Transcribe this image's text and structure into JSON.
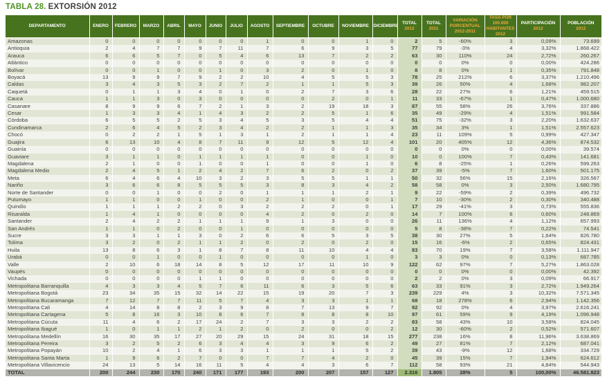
{
  "title": {
    "prefix": "TABLA 28.",
    "rest": "EXTORSIÓN 2012"
  },
  "colors": {
    "title_green": "#4f9227",
    "title_dark": "#3e3e3c",
    "header_bg": "#47731e",
    "header_text": "#ffffff",
    "header_accent": "#edaa3c",
    "row_odd": "#e1e6d4",
    "row_even": "#f3f3ee",
    "total2012_column": "#d2dcbf",
    "total_row_bg": "#b3b3ad",
    "total_row_total2012": "#9cba74",
    "body_text": "#3f3f3c"
  },
  "table": {
    "columns": [
      {
        "key": "departamento",
        "label": "DEPARTAMENTO",
        "sub": "",
        "accent": false
      },
      {
        "key": "enero",
        "label": "ENERO",
        "sub": "",
        "accent": false
      },
      {
        "key": "febrero",
        "label": "FEBRERO",
        "sub": "",
        "accent": false
      },
      {
        "key": "marzo",
        "label": "MARZO",
        "sub": "",
        "accent": false
      },
      {
        "key": "abril",
        "label": "ABRIL",
        "sub": "",
        "accent": false
      },
      {
        "key": "mayo",
        "label": "MAYO",
        "sub": "",
        "accent": false
      },
      {
        "key": "junio",
        "label": "JUNIO",
        "sub": "",
        "accent": false
      },
      {
        "key": "julio",
        "label": "JULIO",
        "sub": "",
        "accent": false
      },
      {
        "key": "agosto",
        "label": "AGOSTO",
        "sub": "",
        "accent": false
      },
      {
        "key": "septiembre",
        "label": "SEPTIEMBRE",
        "sub": "",
        "accent": false
      },
      {
        "key": "octubre",
        "label": "OCTUBRE",
        "sub": "",
        "accent": false
      },
      {
        "key": "noviembre",
        "label": "NOVIEMBRE",
        "sub": "",
        "accent": false
      },
      {
        "key": "diciembre",
        "label": "DICIEMBRE",
        "sub": "",
        "accent": false
      },
      {
        "key": "total_2012",
        "label": "TOTAL",
        "sub": "2012",
        "accent": false
      },
      {
        "key": "total_2011",
        "label": "TOTAL",
        "sub": "2011",
        "accent": false
      },
      {
        "key": "variacion",
        "label": "VARIACIÓN PORCENTUAL",
        "sub": "2012-2011",
        "accent": true
      },
      {
        "key": "tasa",
        "label": "TASA POR 100.000",
        "sub": "HABITANTES 2012",
        "accent": true
      },
      {
        "key": "participacion",
        "label": "PARTICIPACIÓN",
        "sub": "2012",
        "accent": false
      },
      {
        "key": "poblacion",
        "label": "POBLACIÓN",
        "sub": "2012",
        "accent": false
      }
    ],
    "rows": [
      {
        "cells": [
          "Amazonas",
          "0",
          "0",
          "0",
          "0",
          "0",
          "0",
          "0",
          "1",
          "0",
          "0",
          "1",
          "0",
          "2",
          "5",
          "-60%",
          "3",
          "0,09%",
          "73.699"
        ]
      },
      {
        "cells": [
          "Antioquia",
          "2",
          "4",
          "7",
          "7",
          "9",
          "7",
          "11",
          "7",
          "6",
          "9",
          "3",
          "5",
          "77",
          "79",
          "-3%",
          "4",
          "3,32%",
          "1.868.422"
        ]
      },
      {
        "cells": [
          "Arauca",
          "6",
          "6",
          "5",
          "7",
          "0",
          "5",
          "4",
          "6",
          "13",
          "7",
          "2",
          "2",
          "63",
          "30",
          "110%",
          "24",
          "2,72%",
          "260.267"
        ]
      },
      {
        "cells": [
          "Atlántico",
          "0",
          "0",
          "0",
          "0",
          "0",
          "0",
          "0",
          "0",
          "0",
          "0",
          "0",
          "0",
          "0",
          "0",
          "0%",
          "0",
          "0,00%",
          "424.286"
        ]
      },
      {
        "cells": [
          "Bolívar",
          "0",
          "0",
          "1",
          "0",
          "0",
          "1",
          "0",
          "3",
          "2",
          "0",
          "1",
          "0",
          "8",
          "8",
          "0%",
          "1",
          "0,35%",
          "791.848"
        ]
      },
      {
        "cells": [
          "Boyacá",
          "13",
          "9",
          "9",
          "7",
          "9",
          "2",
          "2",
          "10",
          "4",
          "5",
          "5",
          "3",
          "78",
          "25",
          "212%",
          "6",
          "3,37%",
          "1.210.496"
        ]
      },
      {
        "cells": [
          "Caldas",
          "3",
          "4",
          "3",
          "5",
          "3",
          "2",
          "7",
          "2",
          "1",
          "1",
          "5",
          "3",
          "39",
          "26",
          "50%",
          "4",
          "1,68%",
          "982.207"
        ]
      },
      {
        "cells": [
          "Caquetá",
          "0",
          "1",
          "1",
          "3",
          "4",
          "0",
          "1",
          "0",
          "2",
          "7",
          "3",
          "6",
          "28",
          "22",
          "27%",
          "6",
          "1,21%",
          "459.515"
        ]
      },
      {
        "cells": [
          "Cauca",
          "1",
          "1",
          "3",
          "0",
          "3",
          "0",
          "0",
          "0",
          "0",
          "2",
          "0",
          "1",
          "11",
          "33",
          "-67%",
          "1",
          "0,47%",
          "1.000.680"
        ]
      },
      {
        "cells": [
          "Casanare",
          "8",
          "9",
          "9",
          "6",
          "7",
          "2",
          "1",
          "3",
          "2",
          "19",
          "18",
          "3",
          "87",
          "55",
          "58%",
          "26",
          "3,76%",
          "337.886"
        ]
      },
      {
        "cells": [
          "Cesar",
          "1",
          "3",
          "3",
          "4",
          "1",
          "4",
          "3",
          "2",
          "2",
          "5",
          "1",
          "6",
          "35",
          "49",
          "-29%",
          "4",
          "1,51%",
          "991.584"
        ]
      },
      {
        "cells": [
          "Córdoba",
          "6",
          "5",
          "5",
          "2",
          "5",
          "3",
          "4",
          "5",
          "3",
          "5",
          "4",
          "4",
          "51",
          "75",
          "-32%",
          "3",
          "2,20%",
          "1.632.637"
        ]
      },
      {
        "cells": [
          "Cundinamarca",
          "2",
          "6",
          "4",
          "5",
          "2",
          "3",
          "4",
          "2",
          "2",
          "1",
          "1",
          "3",
          "35",
          "34",
          "3%",
          "1",
          "1,51%",
          "2.557.623"
        ]
      },
      {
        "cells": [
          "Chocó",
          "0",
          "2",
          "2",
          "1",
          "5",
          "1",
          "3",
          "1",
          "2",
          "1",
          "1",
          "4",
          "23",
          "11",
          "109%",
          "5",
          "0,99%",
          "427.347"
        ]
      },
      {
        "cells": [
          "Guajira",
          "6",
          "13",
          "10",
          "4",
          "8",
          "7",
          "11",
          "9",
          "12",
          "5",
          "12",
          "4",
          "101",
          "20",
          "405%",
          "12",
          "4,36%",
          "874.532"
        ]
      },
      {
        "cells": [
          "Guainía",
          "0",
          "0",
          "0",
          "0",
          "0",
          "0",
          "0",
          "0",
          "0",
          "0",
          "0",
          "0",
          "0",
          "0",
          "0%",
          "0",
          "0,00%",
          "39.574"
        ]
      },
      {
        "cells": [
          "Guaviare",
          "3",
          "1",
          "1",
          "0",
          "1",
          "1",
          "1",
          "1",
          "0",
          "0",
          "1",
          "0",
          "10",
          "0",
          "100%",
          "7",
          "0,43%",
          "141.681"
        ]
      },
      {
        "cells": [
          "Magdalena",
          "2",
          "1",
          "0",
          "0",
          "1",
          "0",
          "0",
          "1",
          "0",
          "0",
          "1",
          "0",
          "6",
          "8",
          "-25%",
          "1",
          "0,26%",
          "599.263"
        ]
      },
      {
        "cells": [
          "Magdalena Medio",
          "2",
          "4",
          "5",
          "1",
          "2",
          "4",
          "2",
          "7",
          "6",
          "2",
          "0",
          "2",
          "37",
          "39",
          "-5%",
          "7",
          "1,60%",
          "501.175"
        ]
      },
      {
        "cells": [
          "Meta",
          "6",
          "4",
          "6",
          "4",
          "10",
          "3",
          "2",
          "3",
          "5",
          "5",
          "1",
          "1",
          "50",
          "32",
          "56%",
          "15",
          "2,16%",
          "326.567"
        ]
      },
      {
        "cells": [
          "Nariño",
          "3",
          "6",
          "6",
          "8",
          "5",
          "5",
          "5",
          "3",
          "8",
          "3",
          "4",
          "2",
          "58",
          "58",
          "0%",
          "3",
          "2,50%",
          "1.680.795"
        ]
      },
      {
        "cells": [
          "Norte de Santander",
          "0",
          "0",
          "1",
          "0",
          "0",
          "2",
          "0",
          "1",
          "1",
          "1",
          "2",
          "1",
          "9",
          "22",
          "-59%",
          "2",
          "0,39%",
          "496.732"
        ]
      },
      {
        "cells": [
          "Putumayo",
          "1",
          "1",
          "0",
          "0",
          "1",
          "0",
          "0",
          "2",
          "1",
          "0",
          "0",
          "1",
          "7",
          "10",
          "-30%",
          "2",
          "0,30%",
          "340.488"
        ]
      },
      {
        "cells": [
          "Quindío",
          "1",
          "1",
          "1",
          "2",
          "2",
          "0",
          "3",
          "2",
          "2",
          "2",
          "0",
          "1",
          "17",
          "29",
          "-41%",
          "3",
          "0,73%",
          "555.836"
        ]
      },
      {
        "cells": [
          "Risaralda",
          "1",
          "4",
          "1",
          "0",
          "0",
          "0",
          "0",
          "4",
          "2",
          "0",
          "2",
          "0",
          "14",
          "7",
          "100%",
          "6",
          "0,60%",
          "248.869"
        ]
      },
      {
        "cells": [
          "Santander",
          "2",
          "4",
          "2",
          "2",
          "1",
          "1",
          "1",
          "9",
          "1",
          "3",
          "0",
          "0",
          "26",
          "11",
          "136%",
          "4",
          "1,12%",
          "657.993"
        ]
      },
      {
        "cells": [
          "San Andrés",
          "1",
          "1",
          "0",
          "2",
          "0",
          "0",
          "1",
          "0",
          "0",
          "0",
          "0",
          "0",
          "5",
          "8",
          "-38%",
          "7",
          "0,22%",
          "74.541"
        ]
      },
      {
        "cells": [
          "Sucre",
          "3",
          "3",
          "1",
          "1",
          "3",
          "0",
          "2",
          "6",
          "6",
          "5",
          "3",
          "5",
          "38",
          "30",
          "27%",
          "5",
          "1,64%",
          "826.780"
        ]
      },
      {
        "cells": [
          "Tolima",
          "3",
          "2",
          "0",
          "2",
          "1",
          "1",
          "2",
          "0",
          "2",
          "0",
          "2",
          "0",
          "15",
          "16",
          "-6%",
          "2",
          "0,65%",
          "824.431"
        ]
      },
      {
        "cells": [
          "Huila",
          "13",
          "8",
          "6",
          "3",
          "1",
          "8",
          "7",
          "8",
          "11",
          "10",
          "4",
          "4",
          "83",
          "70",
          "19%",
          "7",
          "3,58%",
          "1.111.947"
        ]
      },
      {
        "cells": [
          "Urabá",
          "0",
          "0",
          "1",
          "0",
          "0",
          "1",
          "0",
          "0",
          "0",
          "0",
          "1",
          "0",
          "3",
          "3",
          "0%",
          "0",
          "0,13%",
          "687.785"
        ]
      },
      {
        "cells": [
          "Valle",
          "2",
          "10",
          "6",
          "18",
          "14",
          "8",
          "5",
          "12",
          "17",
          "11",
          "10",
          "9",
          "122",
          "62",
          "97%",
          "7",
          "5,27%",
          "1.863.028"
        ]
      },
      {
        "cells": [
          "Vaupés",
          "0",
          "0",
          "0",
          "0",
          "0",
          "0",
          "0",
          "0",
          "0",
          "0",
          "0",
          "0",
          "0",
          "0",
          "0%",
          "0",
          "0,00%",
          "42.392"
        ]
      },
      {
        "cells": [
          "Vichada",
          "0",
          "0",
          "0",
          "0",
          "1",
          "1",
          "0",
          "0",
          "0",
          "0",
          "0",
          "0",
          "2",
          "2",
          "0%",
          "3",
          "0,09%",
          "66.917"
        ]
      },
      {
        "cells": [
          "Metropolitana Barranquilla",
          "4",
          "3",
          "3",
          "4",
          "5",
          "7",
          "6",
          "11",
          "6",
          "3",
          "5",
          "6",
          "63",
          "33",
          "91%",
          "3",
          "2,72%",
          "1.949.264"
        ]
      },
      {
        "cells": [
          "Metropolitana Bogotá",
          "23",
          "34",
          "35",
          "15",
          "32",
          "14",
          "22",
          "15",
          "19",
          "20",
          "7",
          "3",
          "239",
          "229",
          "4%",
          "3",
          "10,32%",
          "7.571.345"
        ]
      },
      {
        "cells": [
          "Metropolitana Bucaramanga",
          "7",
          "12",
          "7",
          "7",
          "11",
          "5",
          "7",
          "4",
          "3",
          "3",
          "1",
          "1",
          "68",
          "18",
          "278%",
          "6",
          "2,94%",
          "1.142.356"
        ]
      },
      {
        "cells": [
          "Metropolitana Cali",
          "4",
          "14",
          "8",
          "8",
          "2",
          "3",
          "9",
          "8",
          "7",
          "13",
          "9",
          "7",
          "92",
          "92",
          "0%",
          "4",
          "3,97%",
          "2.616.241"
        ]
      },
      {
        "cells": [
          "Metropolitana Cartagena",
          "5",
          "8",
          "16",
          "3",
          "10",
          "8",
          "6",
          "7",
          "8",
          "8",
          "8",
          "10",
          "97",
          "61",
          "59%",
          "9",
          "4,19%",
          "1.096.948"
        ]
      },
      {
        "cells": [
          "Metropolitana Cúcuta",
          "11",
          "4",
          "6",
          "2",
          "17",
          "24",
          "2",
          "7",
          "3",
          "3",
          "2",
          "2",
          "83",
          "58",
          "43%",
          "10",
          "3,58%",
          "824.045"
        ]
      },
      {
        "cells": [
          "Metropolitana Ibagué",
          "1",
          "0",
          "1",
          "1",
          "2",
          "1",
          "2",
          "0",
          "2",
          "0",
          "0",
          "2",
          "12",
          "30",
          "-60%",
          "2",
          "0,52%",
          "571.607"
        ]
      },
      {
        "cells": [
          "Metropolitana Medellín",
          "16",
          "30",
          "35",
          "17",
          "27",
          "20",
          "29",
          "15",
          "24",
          "31",
          "18",
          "15",
          "277",
          "238",
          "16%",
          "8",
          "11,96%",
          "3.638.869"
        ]
      },
      {
        "cells": [
          "Metropolitana Pereira",
          "3",
          "2",
          "5",
          "2",
          "6",
          "3",
          "4",
          "4",
          "3",
          "9",
          "6",
          "2",
          "49",
          "27",
          "81%",
          "7",
          "2,12%",
          "687.041"
        ]
      },
      {
        "cells": [
          "Metropolitana Popayán",
          "10",
          "2",
          "4",
          "1",
          "6",
          "3",
          "3",
          "1",
          "1",
          "1",
          "5",
          "2",
          "39",
          "43",
          "-9%",
          "12",
          "1,68%",
          "334.729"
        ]
      },
      {
        "cells": [
          "Metropolitana Santa Marta",
          "1",
          "9",
          "6",
          "2",
          "7",
          "0",
          "0",
          "7",
          "7",
          "4",
          "2",
          "0",
          "45",
          "39",
          "15%",
          "7",
          "1,94%",
          "624.612"
        ]
      },
      {
        "cells": [
          "Metropolitana Villavicencio",
          "24",
          "13",
          "5",
          "14",
          "16",
          "11",
          "5",
          "4",
          "4",
          "3",
          "6",
          "7",
          "112",
          "58",
          "93%",
          "21",
          "4,84%",
          "544.943"
        ]
      }
    ],
    "total_row": {
      "cells": [
        "TOTAL",
        "200",
        "244",
        "230",
        "170",
        "240",
        "171",
        "177",
        "193",
        "200",
        "207",
        "157",
        "127",
        "2.316",
        "1.805",
        "28%",
        "5",
        "100,00%",
        "46.581.823"
      ]
    }
  }
}
